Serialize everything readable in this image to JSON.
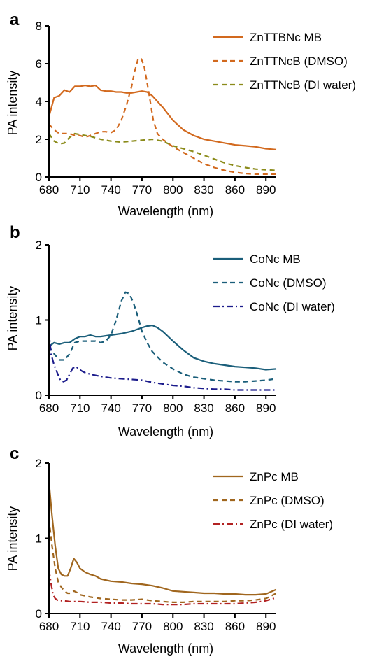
{
  "chart_data": [
    {
      "type": "line",
      "panel": "a",
      "title": "",
      "xlabel": "Wavelength (nm)",
      "ylabel": "PA intensity",
      "xlim": [
        680,
        900
      ],
      "ylim": [
        0,
        8
      ],
      "xticks": [
        680,
        710,
        740,
        770,
        800,
        830,
        860,
        890
      ],
      "yticks": [
        0,
        2,
        4,
        6,
        8
      ],
      "legend_position": "top-right",
      "grid": false,
      "series": [
        {
          "name": "ZnTTBNc MB",
          "color": "#d2691e",
          "style": "solid",
          "x": [
            680,
            685,
            690,
            695,
            700,
            705,
            710,
            715,
            720,
            725,
            730,
            735,
            740,
            745,
            750,
            755,
            760,
            765,
            770,
            775,
            780,
            785,
            790,
            800,
            810,
            820,
            830,
            840,
            850,
            860,
            870,
            880,
            890,
            900
          ],
          "y": [
            3.2,
            4.2,
            4.3,
            4.6,
            4.5,
            4.8,
            4.8,
            4.85,
            4.8,
            4.85,
            4.6,
            4.55,
            4.55,
            4.5,
            4.5,
            4.45,
            4.45,
            4.5,
            4.55,
            4.5,
            4.3,
            4.0,
            3.7,
            3.0,
            2.5,
            2.2,
            2.0,
            1.9,
            1.8,
            1.7,
            1.65,
            1.6,
            1.5,
            1.45
          ]
        },
        {
          "name": "ZnTTNcB (DMSO)",
          "color": "#d2691e",
          "style": "dashed",
          "x": [
            680,
            685,
            690,
            695,
            700,
            705,
            710,
            715,
            720,
            725,
            730,
            735,
            740,
            745,
            750,
            755,
            760,
            763,
            766,
            769,
            772,
            775,
            778,
            781,
            785,
            790,
            800,
            810,
            820,
            830,
            840,
            850,
            860,
            870,
            880,
            890,
            900
          ],
          "y": [
            2.8,
            2.5,
            2.3,
            2.3,
            2.3,
            2.2,
            2.2,
            2.1,
            2.2,
            2.3,
            2.4,
            2.4,
            2.35,
            2.5,
            3.0,
            3.8,
            4.8,
            5.6,
            6.2,
            6.3,
            5.9,
            5.0,
            4.0,
            3.0,
            2.3,
            2.0,
            1.6,
            1.3,
            1.0,
            0.7,
            0.5,
            0.35,
            0.25,
            0.18,
            0.15,
            0.15,
            0.15
          ]
        },
        {
          "name": "ZnTTNcB (DI water)",
          "color": "#8b8b1a",
          "style": "dashed",
          "x": [
            680,
            685,
            690,
            695,
            700,
            705,
            710,
            720,
            730,
            740,
            750,
            760,
            770,
            780,
            790,
            800,
            810,
            820,
            830,
            840,
            850,
            860,
            870,
            880,
            890,
            900
          ],
          "y": [
            2.3,
            1.9,
            1.75,
            1.8,
            2.1,
            2.3,
            2.25,
            2.15,
            2.0,
            1.9,
            1.85,
            1.9,
            1.95,
            2.0,
            1.9,
            1.65,
            1.5,
            1.35,
            1.15,
            0.95,
            0.75,
            0.6,
            0.5,
            0.42,
            0.38,
            0.35
          ]
        }
      ]
    },
    {
      "type": "line",
      "panel": "b",
      "title": "",
      "xlabel": "Wavelength (nm)",
      "ylabel": "PA intensity",
      "xlim": [
        680,
        900
      ],
      "ylim": [
        0,
        2
      ],
      "xticks": [
        680,
        710,
        740,
        770,
        800,
        830,
        860,
        890
      ],
      "yticks": [
        0,
        1,
        2
      ],
      "legend_position": "top-right",
      "grid": false,
      "series": [
        {
          "name": "CoNc MB",
          "color": "#1a5e7a",
          "style": "solid",
          "x": [
            680,
            685,
            690,
            695,
            700,
            705,
            710,
            715,
            720,
            725,
            730,
            740,
            750,
            760,
            770,
            775,
            780,
            785,
            790,
            800,
            810,
            820,
            830,
            840,
            850,
            860,
            870,
            880,
            890,
            900
          ],
          "y": [
            0.65,
            0.7,
            0.68,
            0.7,
            0.7,
            0.75,
            0.78,
            0.78,
            0.8,
            0.78,
            0.78,
            0.8,
            0.82,
            0.85,
            0.9,
            0.92,
            0.93,
            0.9,
            0.85,
            0.72,
            0.6,
            0.5,
            0.45,
            0.42,
            0.4,
            0.38,
            0.37,
            0.36,
            0.34,
            0.35
          ]
        },
        {
          "name": "CoNc (DMSO)",
          "color": "#1a5e7a",
          "style": "dashed",
          "x": [
            680,
            685,
            690,
            695,
            700,
            705,
            710,
            715,
            720,
            725,
            730,
            735,
            740,
            745,
            750,
            754,
            758,
            762,
            766,
            770,
            775,
            780,
            790,
            800,
            810,
            820,
            830,
            840,
            850,
            860,
            870,
            880,
            890,
            900
          ],
          "y": [
            0.65,
            0.55,
            0.47,
            0.47,
            0.55,
            0.7,
            0.72,
            0.72,
            0.72,
            0.72,
            0.7,
            0.72,
            0.8,
            1.0,
            1.25,
            1.37,
            1.35,
            1.22,
            1.05,
            0.85,
            0.7,
            0.58,
            0.44,
            0.35,
            0.28,
            0.24,
            0.22,
            0.2,
            0.19,
            0.18,
            0.18,
            0.19,
            0.2,
            0.22
          ]
        },
        {
          "name": "CoNc (DI water)",
          "color": "#1c1c8c",
          "style": "dashdot",
          "x": [
            680,
            682,
            685,
            688,
            691,
            694,
            697,
            700,
            703,
            706,
            709,
            712,
            715,
            720,
            730,
            740,
            750,
            760,
            770,
            780,
            790,
            800,
            810,
            820,
            830,
            840,
            850,
            860,
            870,
            880,
            890,
            900
          ],
          "y": [
            0.85,
            0.55,
            0.4,
            0.3,
            0.2,
            0.18,
            0.2,
            0.28,
            0.36,
            0.38,
            0.35,
            0.32,
            0.3,
            0.28,
            0.25,
            0.23,
            0.22,
            0.21,
            0.2,
            0.17,
            0.15,
            0.13,
            0.12,
            0.1,
            0.09,
            0.08,
            0.08,
            0.07,
            0.07,
            0.07,
            0.07,
            0.07
          ]
        }
      ]
    },
    {
      "type": "line",
      "panel": "c",
      "title": "",
      "xlabel": "Wavelength (nm)",
      "ylabel": "PA intensity",
      "xlim": [
        680,
        900
      ],
      "ylim": [
        0,
        2
      ],
      "xticks": [
        680,
        710,
        740,
        770,
        800,
        830,
        860,
        890
      ],
      "yticks": [
        0,
        1,
        2
      ],
      "legend_position": "top-right",
      "grid": false,
      "series": [
        {
          "name": "ZnPc MB",
          "color": "#a0661e",
          "style": "solid",
          "x": [
            680,
            683,
            686,
            689,
            692,
            695,
            698,
            701,
            704,
            707,
            710,
            715,
            720,
            725,
            730,
            740,
            750,
            760,
            770,
            780,
            790,
            800,
            810,
            820,
            830,
            840,
            850,
            860,
            870,
            880,
            890,
            900
          ],
          "y": [
            1.75,
            1.3,
            0.9,
            0.6,
            0.52,
            0.5,
            0.5,
            0.6,
            0.73,
            0.68,
            0.6,
            0.55,
            0.52,
            0.5,
            0.46,
            0.43,
            0.42,
            0.4,
            0.39,
            0.37,
            0.34,
            0.3,
            0.29,
            0.28,
            0.27,
            0.27,
            0.26,
            0.26,
            0.25,
            0.25,
            0.26,
            0.32
          ]
        },
        {
          "name": "ZnPc (DMSO)",
          "color": "#a0661e",
          "style": "dashed",
          "x": [
            680,
            683,
            686,
            689,
            692,
            695,
            698,
            701,
            704,
            707,
            710,
            720,
            730,
            740,
            750,
            760,
            770,
            780,
            790,
            800,
            810,
            820,
            830,
            840,
            850,
            860,
            870,
            880,
            890,
            900
          ],
          "y": [
            1.25,
            0.9,
            0.6,
            0.42,
            0.35,
            0.3,
            0.27,
            0.27,
            0.3,
            0.28,
            0.25,
            0.22,
            0.2,
            0.19,
            0.18,
            0.18,
            0.19,
            0.17,
            0.16,
            0.15,
            0.15,
            0.16,
            0.16,
            0.16,
            0.16,
            0.17,
            0.17,
            0.18,
            0.2,
            0.27
          ]
        },
        {
          "name": "ZnPc (DI water)",
          "color": "#b22222",
          "style": "dashdot",
          "x": [
            680,
            682,
            684,
            686,
            688,
            690,
            695,
            700,
            710,
            720,
            730,
            740,
            750,
            760,
            770,
            780,
            790,
            800,
            810,
            820,
            830,
            840,
            850,
            860,
            870,
            880,
            890,
            900
          ],
          "y": [
            0.58,
            0.4,
            0.25,
            0.2,
            0.18,
            0.17,
            0.17,
            0.16,
            0.16,
            0.15,
            0.15,
            0.14,
            0.14,
            0.13,
            0.13,
            0.13,
            0.12,
            0.12,
            0.12,
            0.13,
            0.13,
            0.13,
            0.13,
            0.13,
            0.14,
            0.15,
            0.17,
            0.21
          ]
        }
      ]
    }
  ]
}
